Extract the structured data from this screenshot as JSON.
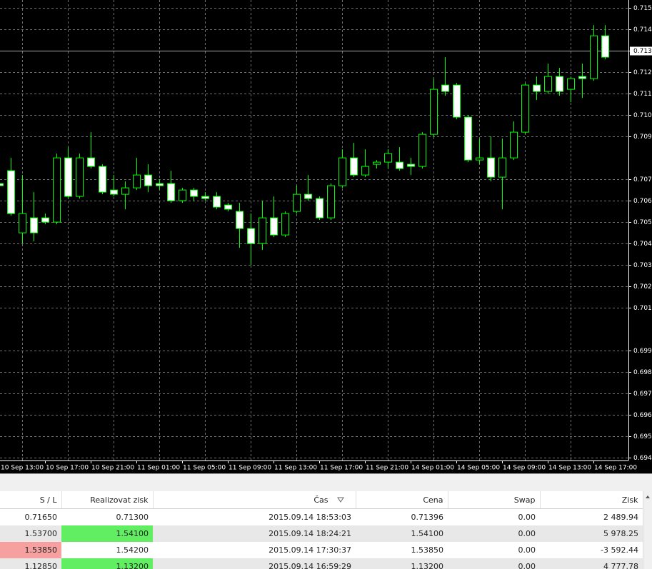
{
  "chart_data": {
    "type": "candlestick",
    "categories": [
      "10 Sep 13:00",
      null,
      null,
      null,
      "10 Sep 17:00",
      null,
      null,
      null,
      "10 Sep 21:00",
      null,
      null,
      null,
      "11 Sep 01:00",
      null,
      null,
      null,
      "11 Sep 05:00",
      null,
      null,
      null,
      "11 Sep 09:00",
      null,
      null,
      null,
      "11 Sep 13:00",
      null,
      null,
      null,
      "11 Sep 17:00",
      null,
      null,
      null,
      "11 Sep 21:00",
      null,
      null,
      null,
      "14 Sep 01:00",
      null,
      null,
      null,
      "14 Sep 05:00",
      null,
      null,
      null,
      "14 Sep 09:00",
      null,
      null,
      null,
      "14 Sep 13:00",
      null,
      null,
      null,
      "14 Sep 17:00",
      null
    ],
    "open": [
      0.7068,
      0.7074,
      0.7045,
      0.7052,
      0.7052,
      0.705,
      0.708,
      0.7062,
      0.708,
      0.7076,
      0.7065,
      0.7063,
      0.7066,
      0.7072,
      0.7068,
      0.7068,
      0.706,
      0.7065,
      0.7062,
      0.7062,
      0.7058,
      0.7055,
      0.7047,
      0.704,
      0.7052,
      0.7044,
      0.7055,
      0.7063,
      0.7061,
      0.7052,
      0.7067,
      0.708,
      0.7072,
      0.7077,
      0.7078,
      0.7078,
      0.7077,
      0.7076,
      0.7091,
      0.7114,
      0.7114,
      0.7099,
      0.7079,
      0.708,
      0.7071,
      0.708,
      0.7092,
      0.7114,
      0.7111,
      0.7118,
      0.7112,
      0.7118,
      0.7117,
      0.7137
    ],
    "high": [
      0.7074,
      0.708,
      0.7072,
      0.7064,
      0.7054,
      0.7082,
      0.7085,
      0.7082,
      0.7092,
      0.7077,
      0.7072,
      0.7069,
      0.708,
      0.7077,
      0.707,
      0.7074,
      0.7066,
      0.7066,
      0.7064,
      0.7064,
      0.7059,
      0.7059,
      0.7054,
      0.706,
      0.7062,
      0.7055,
      0.7067,
      0.7072,
      0.7062,
      0.7068,
      0.7084,
      0.7087,
      0.7084,
      0.7079,
      0.7084,
      0.7085,
      0.708,
      0.7092,
      0.7117,
      0.7127,
      0.7115,
      0.71,
      0.7089,
      0.709,
      0.7089,
      0.7097,
      0.7115,
      0.7118,
      0.7124,
      0.7122,
      0.7118,
      0.7124,
      0.7142,
      0.7142
    ],
    "low": [
      0.7064,
      0.7053,
      0.704,
      0.7041,
      0.7049,
      0.7049,
      0.7061,
      0.7061,
      0.7075,
      0.7063,
      0.7062,
      0.7056,
      0.7065,
      0.7064,
      0.7065,
      0.7059,
      0.7059,
      0.706,
      0.706,
      0.7056,
      0.7055,
      0.7038,
      0.703,
      0.7037,
      0.7043,
      0.7043,
      0.7054,
      0.706,
      0.7051,
      0.7051,
      0.7066,
      0.7071,
      0.7071,
      0.7075,
      0.7075,
      0.7074,
      0.7072,
      0.7075,
      0.709,
      0.7109,
      0.7098,
      0.7078,
      0.7077,
      0.7069,
      0.7056,
      0.7079,
      0.7091,
      0.7107,
      0.711,
      0.7109,
      0.7106,
      0.7108,
      0.7116,
      0.7126
    ],
    "close": [
      0.7067,
      0.7054,
      0.7054,
      0.7045,
      0.705,
      0.708,
      0.7062,
      0.708,
      0.7076,
      0.7064,
      0.7063,
      0.7066,
      0.7072,
      0.7067,
      0.7067,
      0.706,
      0.7065,
      0.7062,
      0.7061,
      0.7057,
      0.7056,
      0.7047,
      0.704,
      0.7052,
      0.7044,
      0.7054,
      0.7063,
      0.7061,
      0.7052,
      0.7067,
      0.708,
      0.7072,
      0.7076,
      0.7078,
      0.7082,
      0.7075,
      0.7076,
      0.7091,
      0.7112,
      0.7111,
      0.7099,
      0.7079,
      0.708,
      0.7071,
      0.708,
      0.7092,
      0.7114,
      0.7111,
      0.7118,
      0.7111,
      0.7117,
      0.7117,
      0.7137,
      0.7127
    ],
    "up_color": "#000000",
    "down_color": "#ffffff",
    "outline_color": "#00ff00",
    "ylim": [
      0.69387,
      0.71537
    ],
    "yticks": [
      0.715,
      0.714,
      0.713,
      0.712,
      0.711,
      {
        "value": 0.71,
        "label": "0.710"
      },
      0.709,
      0.707,
      0.706,
      0.705,
      0.704,
      0.703,
      0.702,
      0.701,
      0.699,
      0.698,
      0.697,
      0.696,
      0.695,
      0.694
    ],
    "grid": true,
    "current_price": 0.713
  },
  "table": {
    "columns": [
      "S / L",
      "Realizovat zisk",
      "Čas",
      "Cena",
      "Swap",
      "Zisk"
    ],
    "rows": [
      [
        "0.71650",
        "0.71300",
        "2015.09.14 18:53:03",
        "0.71396",
        "0.00",
        "2 489.94"
      ],
      [
        "1.53700",
        "1.54100",
        "2015.09.14 18:24:21",
        "1.54100",
        "0.00",
        "5 978.25"
      ],
      [
        "1.53850",
        "1.54200",
        "2015.09.14 17:30:37",
        "1.53850",
        "0.00",
        "-3 592.44"
      ],
      [
        "1.12850",
        "1.13200",
        "2015.09.14 16:59:29",
        "1.13200",
        "0.00",
        "4 777.78"
      ]
    ]
  }
}
